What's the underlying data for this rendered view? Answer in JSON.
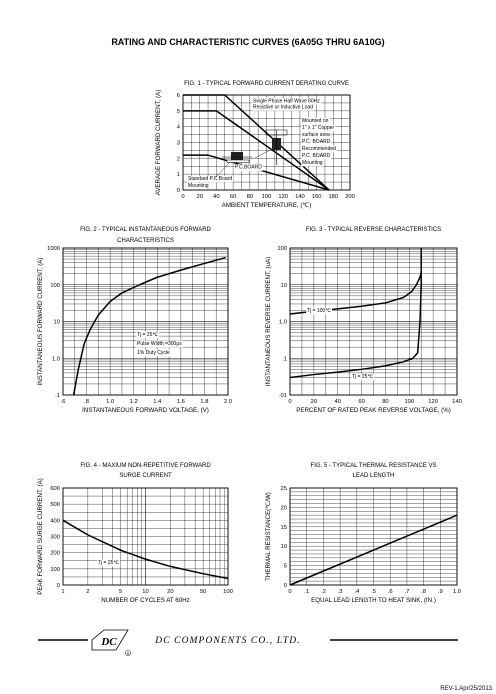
{
  "page": {
    "title": "RATING AND CHARACTERISTIC CURVES (6A05G  THRU  6A10G)",
    "company": "DC COMPONENTS CO., LTD.",
    "logo_text": "DC",
    "revision": "REV-1.Apr/25/2013"
  },
  "chart_data": [
    {
      "id": "fig1",
      "type": "line",
      "title": "FIG. 1 - TYPICAL FORWARD CURRENT DERATING CURVE",
      "xlabel": "AMBIENT TEMPERATURE, (℃)",
      "ylabel": "AVERAGE FORWARD CURRENT, (A)",
      "xlim": [
        0,
        200
      ],
      "ylim": [
        0,
        6
      ],
      "xticks": [
        "0",
        "20",
        "40",
        "60",
        "80",
        "100",
        "120",
        "140",
        "160",
        "180",
        "200"
      ],
      "yticks": [
        "0",
        "1",
        "2",
        "3",
        "4",
        "5",
        "6"
      ],
      "grid": true,
      "series": [
        {
          "name": "",
          "x": [
            0,
            50,
            175
          ],
          "y": [
            6,
            6,
            0
          ]
        },
        {
          "name": "",
          "x": [
            0,
            40,
            175
          ],
          "y": [
            5,
            5,
            0
          ]
        },
        {
          "name": "",
          "x": [
            0,
            30,
            175
          ],
          "y": [
            2.2,
            2.2,
            0
          ]
        }
      ],
      "annotations": [
        "Single Phase Half Wave 60Hz",
        "Resistive or Inductive Load",
        "Mounted on",
        "1\" x 1\" Copper",
        "surface area",
        "P.C. BOARD",
        "Recommended",
        "P.C. BOARD",
        "Mounting",
        "P.C.BOARD",
        "Standard P.C.Board",
        "Mounting"
      ]
    },
    {
      "id": "fig2",
      "type": "line",
      "title": "FIG. 2 - TYPICAL INSTANTANEOUS FORWARD",
      "subtitle": "CHARACTERISTICS",
      "xlabel": "INSTANTANEOUS FORWARD VOLTAGE, (V)",
      "ylabel": "INSTANTANEOUS FORWARD CURRENT, (A)",
      "xlim": [
        0.6,
        2.0
      ],
      "ylim": [
        0.1,
        1000
      ],
      "yscale": "log",
      "xticks": [
        ".6",
        ".8",
        "1.0",
        "1.2",
        "1.4",
        "1.6",
        "1.8",
        "2.0"
      ],
      "yticks": [
        ".1",
        "1.0",
        "10",
        "100",
        "1000"
      ],
      "grid": true,
      "series": [
        {
          "name": "",
          "x": [
            0.69,
            0.73,
            0.78,
            0.83,
            0.9,
            1.0,
            1.1,
            1.25,
            1.4,
            1.6,
            1.8,
            1.98
          ],
          "y": [
            0.1,
            0.5,
            2.5,
            6,
            15,
            35,
            60,
            100,
            160,
            250,
            380,
            550
          ]
        }
      ],
      "annotations": [
        "Tj = 25℃",
        "Pulse Width =300μs",
        "1% Duty Cycle"
      ]
    },
    {
      "id": "fig3",
      "type": "line",
      "title": "FIG. 3 - TYPICAL REVERSE CHARACTERISTICS",
      "xlabel": "PERCENT OF RATED PEAK REVERSE VOLTAGE, (%)",
      "ylabel": "INSTANTANEOUS REVERSE CURRENT, (uA)",
      "xlim": [
        0,
        140
      ],
      "ylim": [
        0.01,
        100
      ],
      "yscale": "log",
      "xticks": [
        "0",
        "20",
        "40",
        "60",
        "80",
        "100",
        "120",
        "140"
      ],
      "yticks": [
        ".01",
        ".1",
        "1.0",
        "10",
        "100"
      ],
      "grid": true,
      "series": [
        {
          "name": "Tj = 100℃",
          "x": [
            0,
            20,
            40,
            60,
            80,
            95,
            102,
            106,
            109,
            110
          ],
          "y": [
            1.6,
            1.9,
            2.2,
            2.6,
            3.2,
            4.5,
            6.5,
            10,
            16,
            22
          ]
        },
        {
          "name": "Tj = 25℃",
          "x": [
            0,
            20,
            40,
            60,
            80,
            95,
            103,
            107,
            109,
            110,
            110
          ],
          "y": [
            0.03,
            0.036,
            0.042,
            0.05,
            0.062,
            0.08,
            0.1,
            0.14,
            1,
            10,
            100
          ]
        }
      ]
    },
    {
      "id": "fig4",
      "type": "line",
      "title": "FIG. 4 - MAXIUM NON-REPETITIVE FORWARD",
      "subtitle": "SURGE CURRENT",
      "xlabel": "NUMBER OF CYCLES AT 60Hz",
      "ylabel": "PEAK FORWARD SURGE CURRENT, (A)",
      "xlim": [
        1,
        100
      ],
      "ylim": [
        0,
        600
      ],
      "xscale": "log",
      "xticks": [
        "1",
        "2",
        "5",
        "10",
        "20",
        "50",
        "100"
      ],
      "yticks": [
        "0",
        "100",
        "200",
        "300",
        "400",
        "500",
        "600"
      ],
      "grid": true,
      "series": [
        {
          "name": "",
          "x": [
            1,
            2,
            5,
            10,
            20,
            50,
            100
          ],
          "y": [
            400,
            310,
            215,
            160,
            115,
            70,
            40
          ]
        }
      ],
      "annotations": [
        "Tj = 25℃"
      ]
    },
    {
      "id": "fig5",
      "type": "line",
      "title": "FIG. 5 - TYPICAL THERMAL RESISTANCE VS",
      "subtitle": "LEAD LENGTH",
      "xlabel": "EQUAL LEAD LENGTH TO HEAT SINK, (IN.)",
      "ylabel": "THERMAL RESISTANCE(℃/W)",
      "xlim": [
        0,
        1.0
      ],
      "ylim": [
        0,
        25
      ],
      "xticks": [
        "0",
        ".1",
        ".2",
        ".3",
        ".4",
        ".5",
        ".6",
        ".7",
        ".8",
        ".9",
        "1.0"
      ],
      "yticks": [
        "0",
        "5",
        "10",
        "15",
        "20",
        "25"
      ],
      "grid": true,
      "series": [
        {
          "name": "",
          "x": [
            0,
            1.0
          ],
          "y": [
            0,
            18
          ]
        }
      ]
    }
  ]
}
